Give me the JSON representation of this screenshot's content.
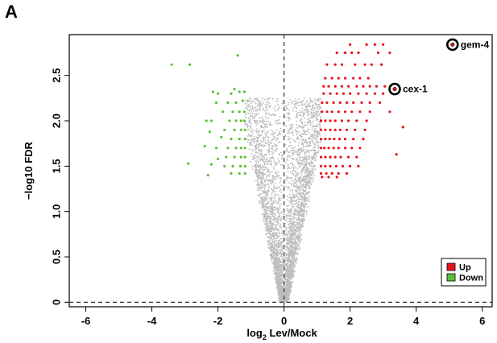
{
  "panel_label": "A",
  "chart_data": {
    "type": "scatter",
    "title": "",
    "xlabel_prefix": "log",
    "xlabel_sub": "2",
    "xlabel_suffix": " Lev/Mock",
    "ylabel": "−log10 FDR",
    "xlim": [
      -6.5,
      6.3
    ],
    "ylim": [
      -0.05,
      2.95
    ],
    "xticks": [
      -6,
      -4,
      -2,
      0,
      2,
      4,
      6
    ],
    "xtick_labels": [
      "-6",
      "-4",
      "-2",
      "0",
      "2",
      "4",
      "6"
    ],
    "yticks": [
      0,
      0.5,
      1.0,
      1.5,
      2.0,
      2.5
    ],
    "ytick_labels": [
      "0",
      "0.5",
      "1.0",
      "1.5",
      "2.0",
      "2.5"
    ],
    "reference_lines": {
      "vertical_x": 0,
      "horizontal_y": 0,
      "style": "dashed"
    },
    "grid": false,
    "legend_position": "bottom-right",
    "legend": [
      {
        "label": "Up",
        "color": "#e8141b"
      },
      {
        "label": "Down",
        "color": "#5cbf3a"
      }
    ],
    "colors": {
      "up": "#e8141b",
      "down": "#5cbf3a",
      "ns": "#bdbdbd"
    },
    "highlighted_genes": [
      {
        "label": "gem-4",
        "x": 5.1,
        "y": 2.84
      },
      {
        "label": "cex-1",
        "x": 3.35,
        "y": 2.35
      }
    ],
    "series": [
      {
        "name": "Up",
        "color": "#e8141b",
        "points": [
          [
            2.0,
            2.84
          ],
          [
            2.5,
            2.84
          ],
          [
            2.75,
            2.84
          ],
          [
            3.0,
            2.84
          ],
          [
            3.2,
            2.75
          ],
          [
            1.6,
            2.75
          ],
          [
            1.85,
            2.75
          ],
          [
            2.05,
            2.75
          ],
          [
            2.25,
            2.75
          ],
          [
            2.85,
            2.75
          ],
          [
            1.3,
            2.62
          ],
          [
            1.55,
            2.62
          ],
          [
            1.75,
            2.62
          ],
          [
            2.15,
            2.62
          ],
          [
            2.45,
            2.62
          ],
          [
            2.65,
            2.62
          ],
          [
            2.95,
            2.62
          ],
          [
            1.25,
            2.47
          ],
          [
            1.45,
            2.47
          ],
          [
            1.65,
            2.47
          ],
          [
            1.85,
            2.47
          ],
          [
            2.1,
            2.47
          ],
          [
            2.3,
            2.47
          ],
          [
            2.55,
            2.47
          ],
          [
            1.2,
            2.38
          ],
          [
            1.35,
            2.38
          ],
          [
            1.55,
            2.38
          ],
          [
            1.75,
            2.38
          ],
          [
            1.95,
            2.38
          ],
          [
            2.2,
            2.38
          ],
          [
            2.4,
            2.38
          ],
          [
            2.6,
            2.38
          ],
          [
            2.8,
            2.38
          ],
          [
            3.05,
            2.38
          ],
          [
            1.2,
            2.3
          ],
          [
            1.4,
            2.3
          ],
          [
            1.6,
            2.3
          ],
          [
            1.8,
            2.3
          ],
          [
            2.0,
            2.3
          ],
          [
            2.25,
            2.3
          ],
          [
            2.5,
            2.3
          ],
          [
            2.75,
            2.3
          ],
          [
            3.0,
            2.3
          ],
          [
            1.15,
            2.2
          ],
          [
            1.3,
            2.2
          ],
          [
            1.5,
            2.2
          ],
          [
            1.7,
            2.2
          ],
          [
            1.9,
            2.2
          ],
          [
            2.1,
            2.2
          ],
          [
            2.35,
            2.2
          ],
          [
            2.6,
            2.2
          ],
          [
            2.9,
            2.2
          ],
          [
            1.15,
            2.1
          ],
          [
            1.3,
            2.1
          ],
          [
            1.45,
            2.1
          ],
          [
            1.65,
            2.1
          ],
          [
            1.85,
            2.1
          ],
          [
            2.05,
            2.1
          ],
          [
            2.3,
            2.1
          ],
          [
            2.6,
            2.1
          ],
          [
            3.2,
            2.1
          ],
          [
            1.12,
            2.0
          ],
          [
            1.25,
            2.0
          ],
          [
            1.4,
            2.0
          ],
          [
            1.55,
            2.0
          ],
          [
            1.75,
            2.0
          ],
          [
            1.95,
            2.0
          ],
          [
            2.2,
            2.0
          ],
          [
            2.5,
            2.0
          ],
          [
            1.12,
            1.9
          ],
          [
            1.25,
            1.9
          ],
          [
            1.4,
            1.9
          ],
          [
            1.55,
            1.9
          ],
          [
            1.7,
            1.9
          ],
          [
            1.9,
            1.9
          ],
          [
            2.15,
            1.9
          ],
          [
            2.45,
            1.9
          ],
          [
            3.6,
            1.93
          ],
          [
            1.12,
            1.8
          ],
          [
            1.25,
            1.8
          ],
          [
            1.38,
            1.8
          ],
          [
            1.52,
            1.8
          ],
          [
            1.68,
            1.8
          ],
          [
            1.85,
            1.8
          ],
          [
            2.1,
            1.8
          ],
          [
            2.4,
            1.8
          ],
          [
            1.12,
            1.7
          ],
          [
            1.22,
            1.7
          ],
          [
            1.35,
            1.7
          ],
          [
            1.5,
            1.7
          ],
          [
            1.65,
            1.7
          ],
          [
            1.85,
            1.7
          ],
          [
            2.05,
            1.7
          ],
          [
            2.3,
            1.7
          ],
          [
            1.12,
            1.6
          ],
          [
            1.25,
            1.6
          ],
          [
            1.4,
            1.6
          ],
          [
            1.55,
            1.6
          ],
          [
            1.72,
            1.6
          ],
          [
            1.95,
            1.6
          ],
          [
            2.2,
            1.6
          ],
          [
            3.4,
            1.63
          ],
          [
            1.12,
            1.5
          ],
          [
            1.25,
            1.5
          ],
          [
            1.4,
            1.5
          ],
          [
            1.58,
            1.5
          ],
          [
            1.78,
            1.5
          ],
          [
            2.0,
            1.5
          ],
          [
            2.25,
            1.5
          ],
          [
            1.12,
            1.42
          ],
          [
            1.28,
            1.42
          ],
          [
            1.45,
            1.42
          ],
          [
            1.65,
            1.42
          ],
          [
            1.9,
            1.42
          ],
          [
            1.15,
            1.38
          ],
          [
            1.35,
            1.38
          ],
          [
            1.6,
            1.38
          ]
        ]
      },
      {
        "name": "Down",
        "color": "#5cbf3a",
        "points": [
          [
            -3.4,
            2.62
          ],
          [
            -2.85,
            2.62
          ],
          [
            -1.4,
            2.72
          ],
          [
            -1.5,
            2.35
          ],
          [
            -1.35,
            2.32
          ],
          [
            -1.2,
            2.32
          ],
          [
            -1.6,
            2.3
          ],
          [
            -2.0,
            2.3
          ],
          [
            -2.15,
            2.32
          ],
          [
            -1.25,
            2.22
          ],
          [
            -1.45,
            2.2
          ],
          [
            -1.7,
            2.2
          ],
          [
            -2.05,
            2.2
          ],
          [
            -1.2,
            2.1
          ],
          [
            -1.35,
            2.1
          ],
          [
            -1.55,
            2.1
          ],
          [
            -1.85,
            2.1
          ],
          [
            -1.2,
            2.0
          ],
          [
            -1.3,
            2.0
          ],
          [
            -1.45,
            2.0
          ],
          [
            -1.65,
            2.0
          ],
          [
            -2.2,
            2.0
          ],
          [
            -2.35,
            2.0
          ],
          [
            -1.18,
            1.9
          ],
          [
            -1.3,
            1.9
          ],
          [
            -1.5,
            1.9
          ],
          [
            -1.8,
            1.9
          ],
          [
            -2.25,
            1.88
          ],
          [
            -1.18,
            1.8
          ],
          [
            -1.35,
            1.8
          ],
          [
            -1.6,
            1.8
          ],
          [
            -1.9,
            1.82
          ],
          [
            -1.18,
            1.7
          ],
          [
            -1.3,
            1.7
          ],
          [
            -1.45,
            1.7
          ],
          [
            -1.7,
            1.7
          ],
          [
            -2.05,
            1.7
          ],
          [
            -2.4,
            1.72
          ],
          [
            -1.18,
            1.6
          ],
          [
            -1.3,
            1.6
          ],
          [
            -1.5,
            1.6
          ],
          [
            -1.75,
            1.6
          ],
          [
            -2.0,
            1.58
          ],
          [
            -1.18,
            1.5
          ],
          [
            -1.32,
            1.5
          ],
          [
            -1.55,
            1.5
          ],
          [
            -1.8,
            1.5
          ],
          [
            -2.2,
            1.52
          ],
          [
            -2.9,
            1.53
          ],
          [
            -1.18,
            1.42
          ],
          [
            -1.35,
            1.42
          ],
          [
            -1.6,
            1.42
          ],
          [
            -2.3,
            1.4
          ]
        ]
      }
    ]
  }
}
